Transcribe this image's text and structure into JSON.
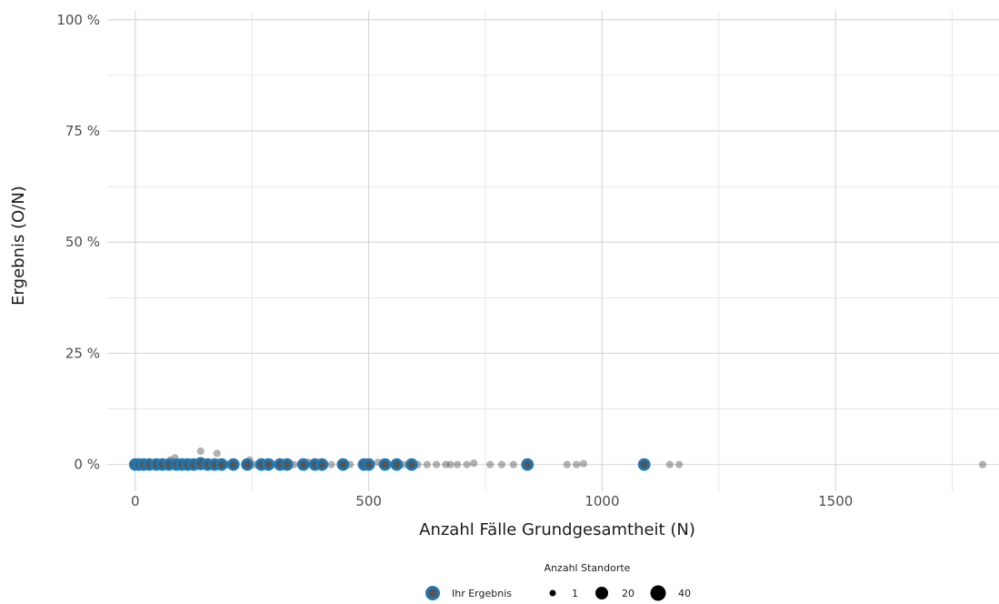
{
  "chart_data": {
    "type": "scatter",
    "xlabel": "Anzahl Fälle Grundgesamtheit (N)",
    "ylabel": "Ergebnis (O/N)",
    "xlim": [
      -60,
      1850
    ],
    "ylim": [
      -0.06,
      1.02
    ],
    "x_ticks": [
      0,
      500,
      1000,
      1500
    ],
    "x_tick_labels": [
      "0",
      "500",
      "1000",
      "1500"
    ],
    "y_ticks": [
      0,
      0.25,
      0.5,
      0.75,
      1
    ],
    "y_tick_labels": [
      "0 %",
      "25 %",
      "50 %",
      "75 %",
      "100 %"
    ],
    "grid": true,
    "legend": {
      "placement": "bottom",
      "title": "Anzahl Standorte",
      "highlight_label": "Ihr Ergebnis",
      "size_labels": [
        "1",
        "20",
        "40"
      ],
      "size_values": [
        1,
        20,
        40
      ]
    },
    "colors": {
      "highlight": "#1f78b4",
      "point": "#555555",
      "grid": "#d9d9d9"
    },
    "series": [
      {
        "group": "all",
        "points": [
          {
            "x": 20,
            "y": 0.0,
            "n": 2
          },
          {
            "x": 55,
            "y": 0.0,
            "n": 3
          },
          {
            "x": 75,
            "y": 0.01,
            "n": 1
          },
          {
            "x": 85,
            "y": 0.015,
            "n": 1
          },
          {
            "x": 95,
            "y": 0.0,
            "n": 2
          },
          {
            "x": 120,
            "y": 0.005,
            "n": 1
          },
          {
            "x": 140,
            "y": 0.03,
            "n": 1
          },
          {
            "x": 145,
            "y": 0.0,
            "n": 2
          },
          {
            "x": 175,
            "y": 0.025,
            "n": 1
          },
          {
            "x": 180,
            "y": 0.005,
            "n": 1
          },
          {
            "x": 200,
            "y": 0.0,
            "n": 2
          },
          {
            "x": 245,
            "y": 0.01,
            "n": 1
          },
          {
            "x": 255,
            "y": 0.0,
            "n": 1
          },
          {
            "x": 290,
            "y": 0.005,
            "n": 1
          },
          {
            "x": 340,
            "y": 0.0,
            "n": 1
          },
          {
            "x": 370,
            "y": 0.005,
            "n": 1
          },
          {
            "x": 420,
            "y": 0.0,
            "n": 1
          },
          {
            "x": 460,
            "y": 0.0,
            "n": 1
          },
          {
            "x": 520,
            "y": 0.005,
            "n": 1
          },
          {
            "x": 575,
            "y": 0.0,
            "n": 1
          },
          {
            "x": 605,
            "y": 0.0,
            "n": 1
          },
          {
            "x": 625,
            "y": 0.0,
            "n": 1
          },
          {
            "x": 645,
            "y": 0.0,
            "n": 1
          },
          {
            "x": 665,
            "y": 0.0,
            "n": 1
          },
          {
            "x": 675,
            "y": 0.0,
            "n": 1
          },
          {
            "x": 690,
            "y": 0.0,
            "n": 1
          },
          {
            "x": 710,
            "y": 0.0,
            "n": 1
          },
          {
            "x": 725,
            "y": 0.003,
            "n": 1
          },
          {
            "x": 760,
            "y": 0.0,
            "n": 1
          },
          {
            "x": 785,
            "y": 0.0,
            "n": 1
          },
          {
            "x": 810,
            "y": 0.0,
            "n": 1
          },
          {
            "x": 925,
            "y": 0.0,
            "n": 1
          },
          {
            "x": 945,
            "y": 0.0,
            "n": 1
          },
          {
            "x": 960,
            "y": 0.002,
            "n": 1
          },
          {
            "x": 1145,
            "y": 0.0,
            "n": 1
          },
          {
            "x": 1165,
            "y": 0.0,
            "n": 1
          },
          {
            "x": 1815,
            "y": 0.0,
            "n": 1
          }
        ]
      },
      {
        "group": "Ihr Ergebnis",
        "points": [
          {
            "x": 0,
            "y": 0.0,
            "n": 6
          },
          {
            "x": 8,
            "y": 0.0,
            "n": 6
          },
          {
            "x": 18,
            "y": 0.0,
            "n": 6
          },
          {
            "x": 30,
            "y": 0.0,
            "n": 6
          },
          {
            "x": 45,
            "y": 0.0,
            "n": 6
          },
          {
            "x": 58,
            "y": 0.0,
            "n": 6
          },
          {
            "x": 72,
            "y": 0.0,
            "n": 6
          },
          {
            "x": 88,
            "y": 0.0,
            "n": 6
          },
          {
            "x": 100,
            "y": 0.0,
            "n": 6
          },
          {
            "x": 112,
            "y": 0.0,
            "n": 6
          },
          {
            "x": 125,
            "y": 0.0,
            "n": 6
          },
          {
            "x": 140,
            "y": 0.002,
            "n": 8
          },
          {
            "x": 155,
            "y": 0.0,
            "n": 6
          },
          {
            "x": 170,
            "y": 0.0,
            "n": 6
          },
          {
            "x": 185,
            "y": 0.0,
            "n": 6
          },
          {
            "x": 210,
            "y": 0.0,
            "n": 6
          },
          {
            "x": 240,
            "y": 0.0,
            "n": 6
          },
          {
            "x": 270,
            "y": 0.0,
            "n": 6
          },
          {
            "x": 285,
            "y": 0.0,
            "n": 6
          },
          {
            "x": 310,
            "y": 0.0,
            "n": 6
          },
          {
            "x": 325,
            "y": 0.0,
            "n": 6
          },
          {
            "x": 360,
            "y": 0.0,
            "n": 6
          },
          {
            "x": 385,
            "y": 0.0,
            "n": 6
          },
          {
            "x": 400,
            "y": 0.0,
            "n": 6
          },
          {
            "x": 445,
            "y": 0.0,
            "n": 6
          },
          {
            "x": 490,
            "y": 0.0,
            "n": 6
          },
          {
            "x": 500,
            "y": 0.0,
            "n": 6
          },
          {
            "x": 535,
            "y": 0.0,
            "n": 6
          },
          {
            "x": 560,
            "y": 0.0,
            "n": 6
          },
          {
            "x": 592,
            "y": 0.0,
            "n": 6
          },
          {
            "x": 840,
            "y": 0.0,
            "n": 6
          },
          {
            "x": 1090,
            "y": 0.0,
            "n": 6
          }
        ]
      }
    ]
  }
}
